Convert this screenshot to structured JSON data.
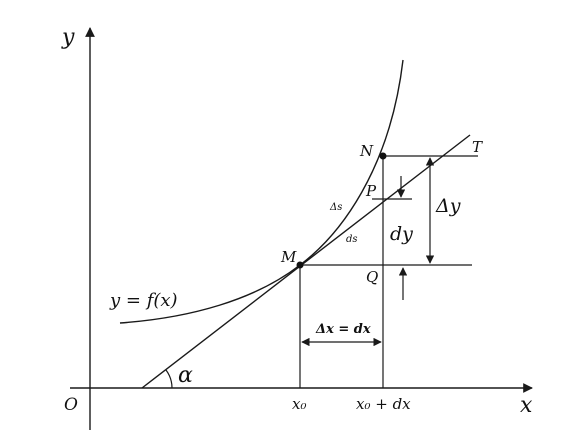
{
  "labels": {
    "y_axis": "y",
    "x_axis": "x",
    "origin": "O",
    "T": "T",
    "N": "N",
    "P": "P",
    "M": "M",
    "Q": "Q",
    "delta_s": "Δs",
    "ds": "ds",
    "dy": "dy",
    "delta_y": "Δy",
    "curve": "y = f(x)",
    "delta_x": "Δx = dx",
    "alpha": "α",
    "x0": "x₀",
    "x0_dx": "x₀ + dx"
  }
}
